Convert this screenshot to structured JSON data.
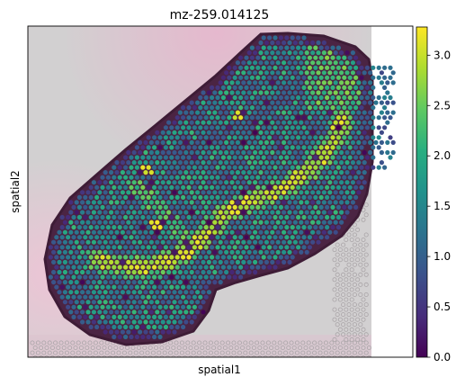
{
  "chart_data": {
    "type": "scatter",
    "title": "mz-259.014125",
    "xlabel": "spatial1",
    "ylabel": "spatial2",
    "x_ticks": [],
    "y_ticks": [],
    "grid": false,
    "legend": "none",
    "colorbar": {
      "cmap": "viridis",
      "vmin": 0.0,
      "vmax": 3.28,
      "tick_values": [
        0.0,
        0.5,
        1.0,
        1.5,
        2.0,
        2.5,
        3.0
      ],
      "tick_labels": [
        "0.0",
        "0.5",
        "1.0",
        "1.5",
        "2.0",
        "2.5",
        "3.0"
      ]
    },
    "colors": {
      "viridis": [
        "#440154",
        "#472d7b",
        "#3b528b",
        "#2c728e",
        "#21918c",
        "#28ae80",
        "#5ec962",
        "#addc30",
        "#fde725"
      ],
      "tissue": "#5a2d4e",
      "background_gray": "#cdcdcd",
      "background_pink": "#e8b9cf"
    }
  }
}
